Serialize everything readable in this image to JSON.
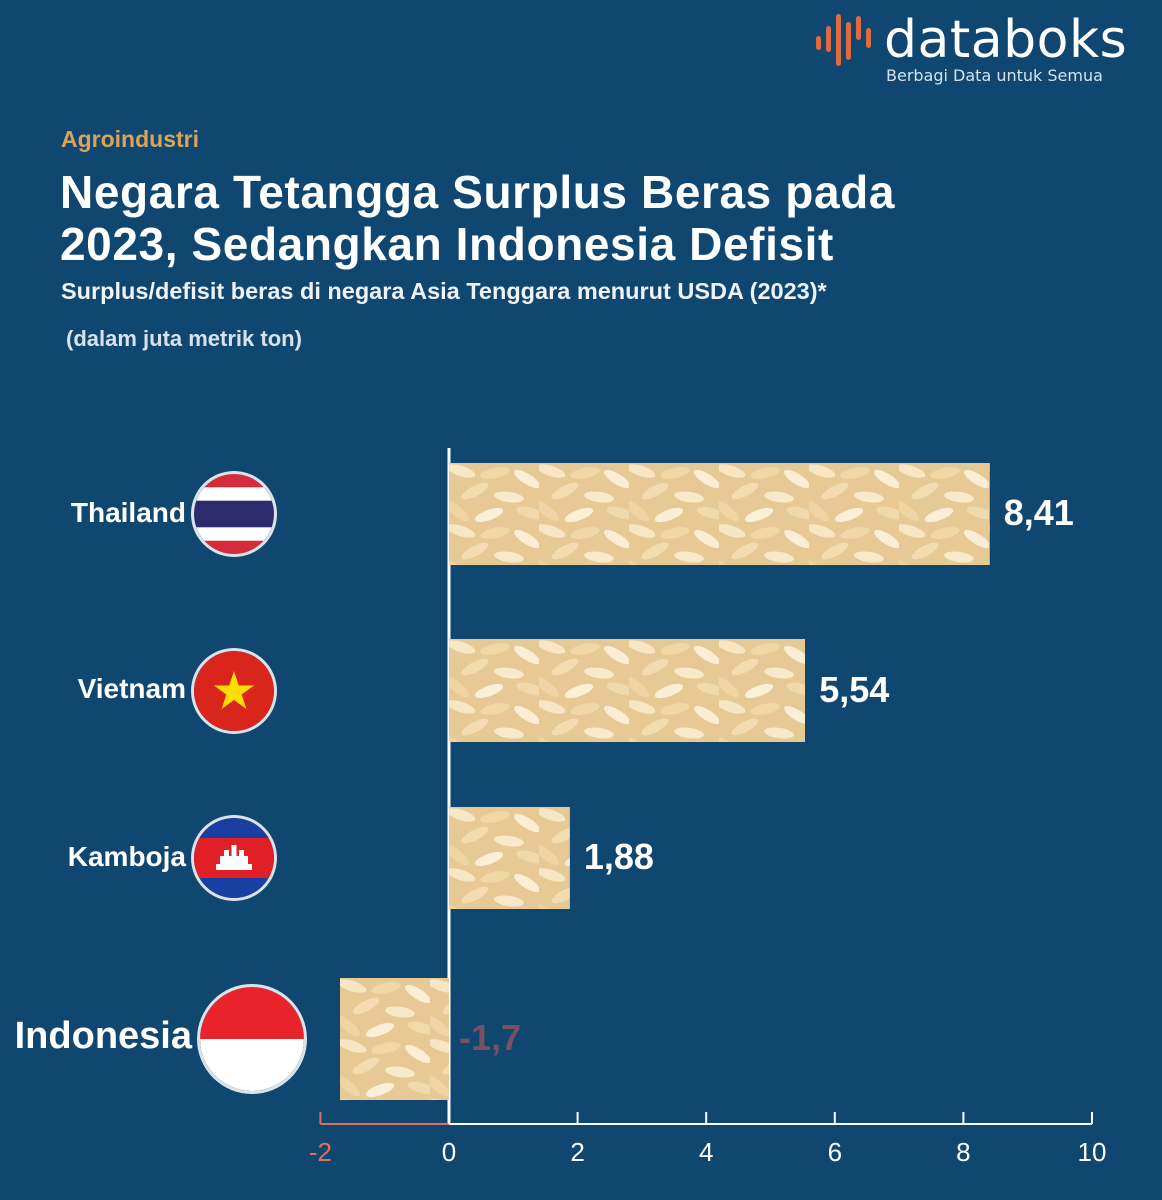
{
  "brand": {
    "name": "databoks",
    "tagline": "Berbagi Data untuk Semua",
    "accent": "#e06a3f"
  },
  "header": {
    "category": "Agroindustri",
    "title_line1": "Negara Tetangga Surplus Beras pada",
    "title_line2": "2023, Sedangkan Indonesia Defisit",
    "subtitle": "Surplus/defisit beras di negara Asia Tenggara menurut USDA (2023)*",
    "unit": "(dalam juta metrik ton)"
  },
  "colors": {
    "background": "#0f4770",
    "text": "#ffffff",
    "category": "#d7a45a",
    "negative_axis": "#e0705a",
    "rice": "#efd7a6"
  },
  "chart_data": {
    "type": "bar",
    "orientation": "horizontal",
    "categories": [
      "Thailand",
      "Vietnam",
      "Kamboja",
      "Indonesia"
    ],
    "values": [
      8.41,
      5.54,
      1.88,
      -1.7
    ],
    "value_labels": [
      "8,41",
      "5,54",
      "1,88",
      "-1,7"
    ],
    "flags": [
      "thailand-flag-icon",
      "vietnam-flag-icon",
      "cambodia-flag-icon",
      "indonesia-flag-icon"
    ],
    "xlim": [
      -2,
      10
    ],
    "xticks": [
      -2,
      0,
      2,
      4,
      6,
      8,
      10
    ],
    "xtick_labels": [
      "-2",
      "0",
      "2",
      "4",
      "6",
      "8",
      "10"
    ],
    "grid": false,
    "legend": "none"
  }
}
